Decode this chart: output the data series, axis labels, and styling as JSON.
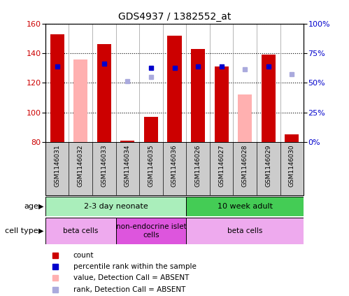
{
  "title": "GDS4937 / 1382552_at",
  "samples": [
    "GSM1146031",
    "GSM1146032",
    "GSM1146033",
    "GSM1146034",
    "GSM1146035",
    "GSM1146036",
    "GSM1146026",
    "GSM1146027",
    "GSM1146028",
    "GSM1146029",
    "GSM1146030"
  ],
  "count_values": [
    153,
    80,
    146,
    81,
    97,
    152,
    143,
    131,
    80,
    139,
    85
  ],
  "count_absent": [
    null,
    136,
    null,
    null,
    null,
    null,
    null,
    null,
    112,
    null,
    null
  ],
  "rank_values": [
    131,
    null,
    133,
    null,
    130,
    130,
    131,
    131,
    null,
    131,
    null
  ],
  "rank_absent": [
    null,
    null,
    null,
    121,
    124,
    null,
    null,
    null,
    129,
    null,
    126
  ],
  "ylim_left": [
    80,
    160
  ],
  "ylim_right": [
    0,
    100
  ],
  "yticks_left": [
    80,
    100,
    120,
    140,
    160
  ],
  "yticks_right": [
    0,
    25,
    50,
    75,
    100
  ],
  "ytick_labels_right": [
    "0%",
    "25%",
    "50%",
    "75%",
    "100%"
  ],
  "bar_color": "#cc0000",
  "absent_bar_color": "#ffb0b0",
  "rank_color": "#0000cc",
  "rank_absent_color": "#aaaadd",
  "age_groups": [
    {
      "label": "2-3 day neonate",
      "start": 0,
      "end": 6,
      "color": "#aaeebb"
    },
    {
      "label": "10 week adult",
      "start": 6,
      "end": 11,
      "color": "#44cc55"
    }
  ],
  "cell_type_groups": [
    {
      "label": "beta cells",
      "start": 0,
      "end": 3,
      "color": "#eeaaee"
    },
    {
      "label": "non-endocrine islet\ncells",
      "start": 3,
      "end": 6,
      "color": "#dd55dd"
    },
    {
      "label": "beta cells",
      "start": 6,
      "end": 11,
      "color": "#eeaaee"
    }
  ],
  "legend_items": [
    {
      "label": "count",
      "color": "#cc0000"
    },
    {
      "label": "percentile rank within the sample",
      "color": "#0000cc"
    },
    {
      "label": "value, Detection Call = ABSENT",
      "color": "#ffb0b0"
    },
    {
      "label": "rank, Detection Call = ABSENT",
      "color": "#aaaadd"
    }
  ],
  "background_color": "#ffffff",
  "plot_bg_color": "#ffffff",
  "tick_label_color_left": "#cc0000",
  "tick_label_color_right": "#0000cc",
  "xticklabel_bg": "#cccccc",
  "bar_width": 0.6
}
